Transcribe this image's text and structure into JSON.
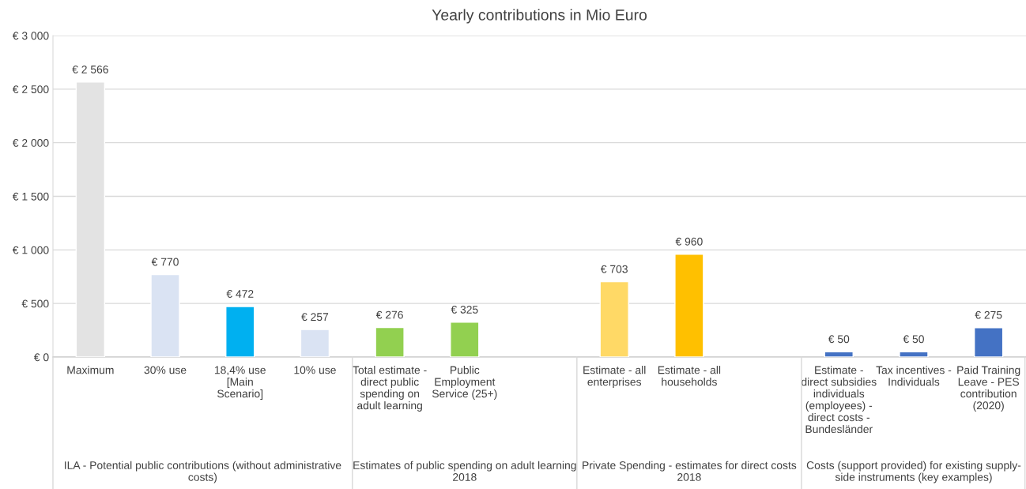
{
  "chart_data": {
    "type": "bar",
    "title": "Yearly contributions in Mio Euro",
    "categories": [
      "Maximum",
      "30% use",
      "18,4% use\n[Main\nScenario]",
      "10% use",
      "Total estimate -\ndirect public\nspending on\nadult learning",
      "Public\nEmployment\nService (25+)",
      null,
      "Estimate - all\nenterprises",
      "Estimate - all\nhouseholds",
      null,
      "Estimate -\ndirect subsidies\nindividuals\n(employees) -\ndirect costs -\nBundesländer",
      "Tax incentives -\nIndividuals",
      "Paid Training\nLeave - PES\ncontribution\n(2020)"
    ],
    "values": [
      2566,
      770,
      472,
      257,
      276,
      325,
      null,
      703,
      960,
      null,
      50,
      50,
      275
    ],
    "colors": [
      "#e3e3e3",
      "#dae3f3",
      "#00b0f0",
      "#dae3f3",
      "#92d050",
      "#92d050",
      "#92d050",
      "#ffd966",
      "#ffc000",
      "#ffc000",
      "#4472c4",
      "#4472c4",
      "#4472c4"
    ],
    "value_labels": [
      "€ 2 566",
      "€ 770",
      "€ 472",
      "€ 257",
      "€ 276",
      "€ 325",
      null,
      "€ 703",
      "€ 960",
      null,
      "€ 50",
      "€ 50",
      "€ 275"
    ],
    "ylim": [
      0,
      3000
    ],
    "yticks": [
      {
        "value": 0,
        "label": "€ 0"
      },
      {
        "value": 500,
        "label": "€ 500"
      },
      {
        "value": 1000,
        "label": "€ 1 000"
      },
      {
        "value": 1500,
        "label": "€ 1 500"
      },
      {
        "value": 2000,
        "label": "€ 2 000"
      },
      {
        "value": 2500,
        "label": "€ 2 500"
      },
      {
        "value": 3000,
        "label": "€ 3 000"
      }
    ],
    "grid": "y",
    "annotations": [
      "ILA - Potential public contributions (without administrative\ncosts)",
      "Estimates of public spending on adult learning\n2018",
      "Private Spending - estimates for direct costs\n2018",
      "Costs (support provided) for existing supply-\nside instruments (key examples)"
    ]
  }
}
